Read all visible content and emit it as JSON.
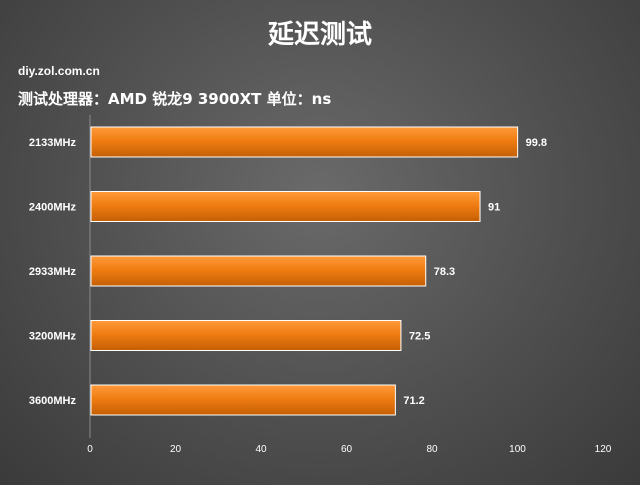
{
  "title": "延迟测试",
  "watermark": "diy.zol.com.cn",
  "subtitle": "测试处理器：AMD 锐龙9 3900XT  单位：ns",
  "colors": {
    "bar": "#f07d12",
    "bar_dark": "#c45f05",
    "text": "#ffffff",
    "grid": "#8a8a8a"
  },
  "chart_data": {
    "type": "bar",
    "orientation": "horizontal",
    "categories": [
      "2133MHz",
      "2400MHz",
      "2933MHz",
      "3200MHz",
      "3600MHz"
    ],
    "values": [
      99.8,
      91,
      78.3,
      72.5,
      71.2
    ],
    "data_labels": [
      "99.8",
      "91",
      "78.3",
      "72.5",
      "71.2"
    ],
    "xlim": [
      0,
      120
    ],
    "x_ticks": [
      "0",
      "20",
      "40",
      "60",
      "80",
      "100",
      "120"
    ],
    "grid": false,
    "title": "延迟测试"
  }
}
